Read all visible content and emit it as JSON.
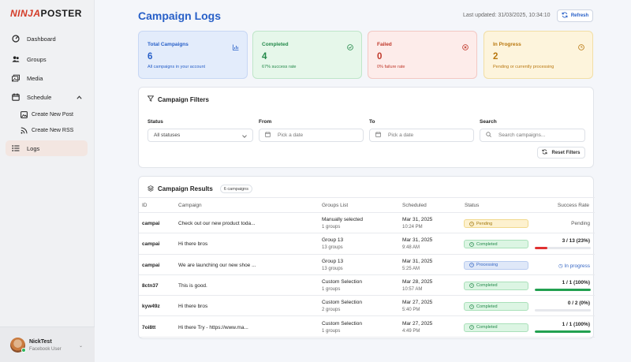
{
  "app": {
    "logo_prefix": "NINJA",
    "logo_suffix": "POSTER"
  },
  "sidebar": {
    "items": [
      {
        "label": "Dashboard",
        "icon": "gauge-icon"
      },
      {
        "label": "Groups",
        "icon": "users-icon"
      },
      {
        "label": "Media",
        "icon": "images-icon"
      },
      {
        "label": "Schedule",
        "icon": "calendar-icon"
      },
      {
        "label": "Logs",
        "icon": "list-icon"
      }
    ],
    "schedule_sub": [
      {
        "label": "Create New Post",
        "icon": "image-icon"
      },
      {
        "label": "Create New RSS",
        "icon": "rss-icon"
      }
    ]
  },
  "user": {
    "name": "NickTest",
    "role": "Facebook User",
    "menu": "⌄"
  },
  "header": {
    "title": "Campaign Logs",
    "updated": "Last updated: 31/03/2025, 10:34:10",
    "refresh_label": "Refresh"
  },
  "cards": [
    {
      "title": "Total Campaigns",
      "value": "6",
      "sub": "All campaigns in your account",
      "color": "#2860c8",
      "bg": "#e3ecfb",
      "border": "#c7d7f4"
    },
    {
      "title": "Completed",
      "value": "4",
      "sub": "67% success rate",
      "color": "#23894a",
      "bg": "#e6f7ea",
      "border": "#bfe6c9"
    },
    {
      "title": "Failed",
      "value": "0",
      "sub": "0% failure rate",
      "color": "#c0392b",
      "bg": "#fdecea",
      "border": "#f3c8c3"
    },
    {
      "title": "In Progress",
      "value": "2",
      "sub": "Pending or currently processing",
      "color": "#b9770e",
      "bg": "#fdf4dc",
      "border": "#f2dea5"
    }
  ],
  "filters": {
    "heading": "Campaign Filters",
    "status_label": "Status",
    "status_value": "All statuses",
    "from_label": "From",
    "from_placeholder": "Pick a date",
    "to_label": "To",
    "to_placeholder": "Pick a date",
    "search_label": "Search",
    "search_placeholder": "Search campaigns...",
    "reset_label": "Reset Filters"
  },
  "results": {
    "heading": "Campaign Results",
    "count_badge": "6 campaigns",
    "columns": [
      "ID",
      "Campaign",
      "Groups List",
      "Scheduled",
      "Status",
      "Success Rate"
    ],
    "rows": [
      {
        "id": "campai",
        "campaign": "Check out our new product toda...",
        "group": "Manually selected",
        "group_count": "1 groups",
        "date": "Mar 31, 2025",
        "time": "10:24 PM",
        "status": "Pending",
        "status_class": "st-pending",
        "rate": "Pending",
        "rate_color": "#555",
        "progress": null
      },
      {
        "id": "campai",
        "campaign": "Hi there bros",
        "group": "Group 13",
        "group_count": "13 groups",
        "date": "Mar 31, 2025",
        "time": "9:48 AM",
        "status": "Completed",
        "status_class": "st-completed",
        "rate": "3 / 13 (23%)",
        "rate_color": "#222",
        "progress": 0.23,
        "bar_color": "#e03131"
      },
      {
        "id": "campai",
        "campaign": "We are launching our new shoe ...",
        "group": "Group 13",
        "group_count": "13 groups",
        "date": "Mar 31, 2025",
        "time": "5:25 AM",
        "status": "Processing",
        "status_class": "st-processing",
        "rate": "In progress",
        "rate_color": "#3566c4",
        "progress": null
      },
      {
        "id": "8ctn37",
        "campaign": "This is good.",
        "group": "Custom Selection",
        "group_count": "1 groups",
        "date": "Mar 28, 2025",
        "time": "10:57 AM",
        "status": "Completed",
        "status_class": "st-completed",
        "rate": "1 / 1 (100%)",
        "rate_color": "#222",
        "progress": 1.0,
        "bar_color": "#22a050"
      },
      {
        "id": "kyw49z",
        "campaign": "Hi there bros",
        "group": "Custom Selection",
        "group_count": "2 groups",
        "date": "Mar 27, 2025",
        "time": "5:40 PM",
        "status": "Completed",
        "status_class": "st-completed",
        "rate": "0 / 2 (0%)",
        "rate_color": "#222",
        "progress": 0.0,
        "bar_color": "#22a050"
      },
      {
        "id": "7oi8tt",
        "campaign": "Hi there Try - https://www.ma...",
        "group": "Custom Selection",
        "group_count": "1 groups",
        "date": "Mar 27, 2025",
        "time": "4:49 PM",
        "status": "Completed",
        "status_class": "st-completed",
        "rate": "1 / 1 (100%)",
        "rate_color": "#222",
        "progress": 1.0,
        "bar_color": "#22a050"
      }
    ]
  }
}
